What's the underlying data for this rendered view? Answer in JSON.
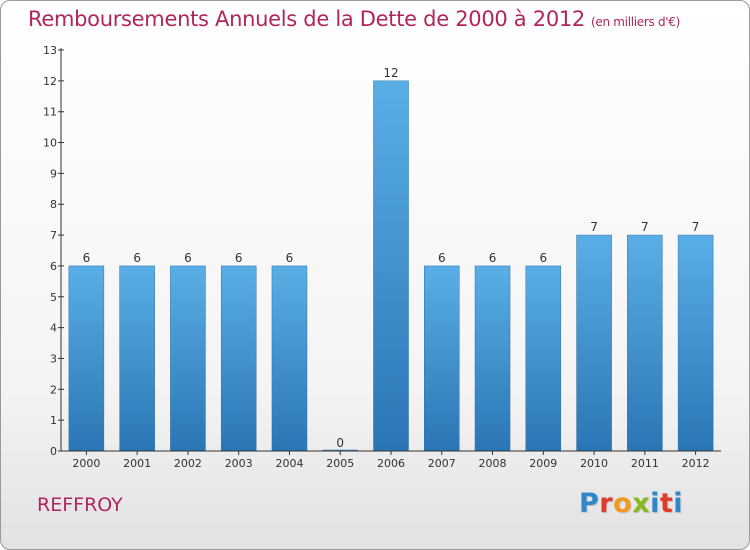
{
  "colors": {
    "accent": "#b0265c",
    "bar_top": "#5aaee6",
    "bar_bottom": "#2a76b4",
    "axis": "#333333",
    "text": "#333333",
    "logo": [
      "#2f86c8",
      "#e03a2a",
      "#f29a1d",
      "#8ab820",
      "#2f86c8",
      "#e03a2a"
    ]
  },
  "chart_data": {
    "type": "bar",
    "title": "Remboursements Annuels de la Dette de 2000 à 2012",
    "subtitle": "(en milliers d'€)",
    "categories": [
      "2000",
      "2001",
      "2002",
      "2003",
      "2004",
      "2005",
      "2006",
      "2007",
      "2008",
      "2009",
      "2010",
      "2011",
      "2012"
    ],
    "values": [
      6,
      6,
      6,
      6,
      6,
      0,
      12,
      6,
      6,
      6,
      7,
      7,
      7
    ],
    "yticks": [
      "0",
      "1",
      "2",
      "3",
      "4",
      "5",
      "6",
      "7",
      "8",
      "9",
      "10",
      "11",
      "12",
      "13"
    ],
    "ylim": [
      0,
      13
    ],
    "xlabel": "",
    "ylabel": "",
    "grid": false,
    "data_labels": true
  },
  "footer": {
    "commune": "REFFROY",
    "logo_text": "Proxiti"
  }
}
